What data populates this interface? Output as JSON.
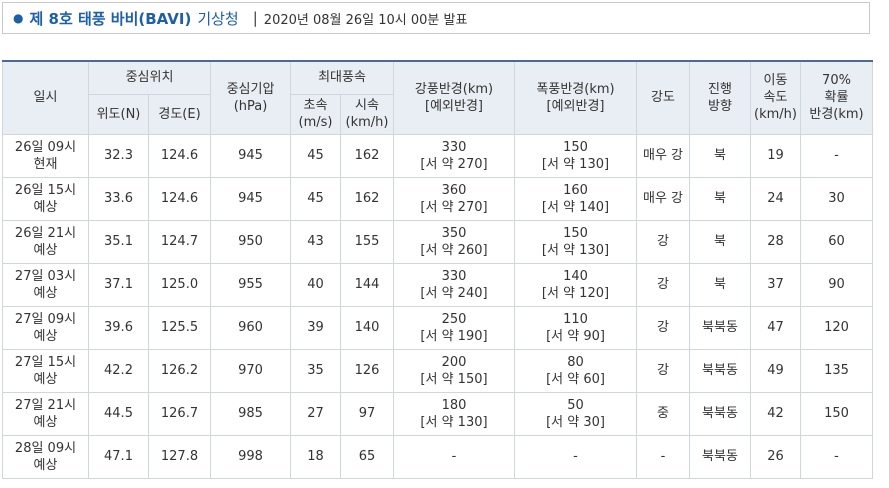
{
  "header": {
    "title": "제 8호 태풍 바비(BAVI)",
    "source": "기상청",
    "issued": "2020년 08월 26일 10시 00분 발표"
  },
  "table": {
    "columns": {
      "time": "일시",
      "center": "중심위치",
      "lat": "위도(N)",
      "lon": "경도(E)",
      "pressure": "중심기압\n(hPa)",
      "max_wind": "최대풍속",
      "ms": "초속\n(m/s)",
      "kmh": "시속\n(km/h)",
      "gale": "강풍반경(km)\n[예외반경]",
      "storm": "폭풍반경(km)\n[예외반경]",
      "intensity": "강도",
      "direction": "진행\n방향",
      "speed": "이동\n속도\n(km/h)",
      "prob": "70%\n확률\n반경(km)"
    },
    "rows": [
      [
        "26일 09시\n현재",
        "32.3",
        "124.6",
        "945",
        "45",
        "162",
        "330\n[서 약 270]",
        "150\n[서 약 130]",
        "매우 강",
        "북",
        "19",
        "-"
      ],
      [
        "26일 15시\n예상",
        "33.6",
        "124.6",
        "945",
        "45",
        "162",
        "360\n[서 약 270]",
        "160\n[서 약 140]",
        "매우 강",
        "북",
        "24",
        "30"
      ],
      [
        "26일 21시\n예상",
        "35.1",
        "124.7",
        "950",
        "43",
        "155",
        "350\n[서 약 260]",
        "150\n[서 약 130]",
        "강",
        "북",
        "28",
        "60"
      ],
      [
        "27일 03시\n예상",
        "37.1",
        "125.0",
        "955",
        "40",
        "144",
        "330\n[서 약 240]",
        "140\n[서 약 120]",
        "강",
        "북",
        "37",
        "90"
      ],
      [
        "27일 09시\n예상",
        "39.6",
        "125.5",
        "960",
        "39",
        "140",
        "250\n[서 약 190]",
        "110\n[서 약 90]",
        "강",
        "북북동",
        "47",
        "120"
      ],
      [
        "27일 15시\n예상",
        "42.2",
        "126.2",
        "970",
        "35",
        "126",
        "200\n[서 약 150]",
        "80\n[서 약 60]",
        "강",
        "북북동",
        "49",
        "135"
      ],
      [
        "27일 21시\n예상",
        "44.5",
        "126.7",
        "985",
        "27",
        "97",
        "180\n[서 약 130]",
        "50\n[서 약 30]",
        "중",
        "북북동",
        "42",
        "150"
      ],
      [
        "28일 09시\n예상",
        "47.1",
        "127.8",
        "998",
        "18",
        "65",
        "-",
        "-",
        "-",
        "북북동",
        "26",
        "-"
      ]
    ]
  }
}
